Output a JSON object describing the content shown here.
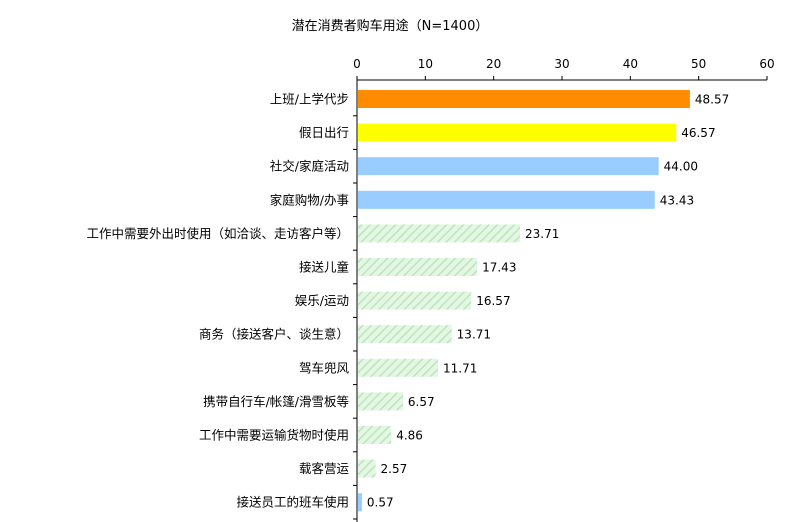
{
  "chart_data": {
    "type": "bar",
    "orientation": "horizontal",
    "title": "潜在消费者购车用途（N=1400）",
    "xlabel": "",
    "ylabel": "",
    "xlim": [
      0,
      60
    ],
    "ticks": [
      0,
      10,
      20,
      30,
      40,
      50,
      60
    ],
    "axis_position": "top",
    "grid": false,
    "categories": [
      "上班/上学代步",
      "假日出行",
      "社交/家庭活动",
      "家庭购物/办事",
      "工作中需要外出时使用（如洽谈、走访客户等）",
      "接送儿童",
      "娱乐/运动",
      "商务（接送客户、谈生意）",
      "驾车兜风",
      "携带自行车/帐篷/滑雪板等",
      "工作中需要运输货物时使用",
      "载客营运",
      "接送员工的班车使用"
    ],
    "values": [
      48.57,
      46.57,
      44.0,
      43.43,
      23.71,
      17.43,
      16.57,
      13.71,
      11.71,
      6.57,
      4.86,
      2.57,
      0.57
    ],
    "value_labels": [
      "48.57",
      "46.57",
      "44.00",
      "43.43",
      "23.71",
      "17.43",
      "16.57",
      "13.71",
      "11.71",
      "6.57",
      "4.86",
      "2.57",
      "0.57"
    ],
    "bar_styles": [
      "orange",
      "yellow",
      "blue",
      "blue",
      "hatch",
      "hatch",
      "hatch",
      "hatch",
      "hatch",
      "hatch",
      "hatch",
      "hatch",
      "blue"
    ],
    "colors": {
      "orange": "#FF8C00",
      "yellow": "#FFFF00",
      "blue": "#99CCFF",
      "hatch_bg": "#E4F6E4",
      "hatch_line": "#B5E3B5"
    }
  }
}
